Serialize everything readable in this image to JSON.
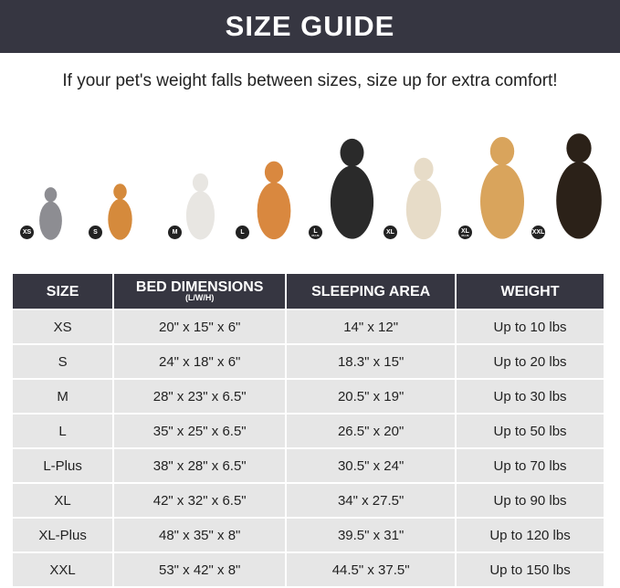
{
  "title": "SIZE GUIDE",
  "subtitle": "If your pet's weight falls between sizes, size up for extra comfort!",
  "pets": [
    {
      "badge": "XS",
      "badge_sub": "",
      "animal": "cat",
      "color": "#8d8d92"
    },
    {
      "badge": "S",
      "badge_sub": "",
      "animal": "pomeranian",
      "color": "#d58a3c"
    },
    {
      "badge": "M",
      "badge_sub": "",
      "animal": "french-bulldog",
      "color": "#e8e6e2"
    },
    {
      "badge": "L",
      "badge_sub": "",
      "animal": "shiba-inu",
      "color": "#d9883f"
    },
    {
      "badge": "L",
      "badge_sub": "PLUS",
      "animal": "border-collie",
      "color": "#2a2a2a"
    },
    {
      "badge": "XL",
      "badge_sub": "",
      "animal": "labrador",
      "color": "#e7dcc8"
    },
    {
      "badge": "XL",
      "badge_sub": "PLUS",
      "animal": "golden-retriever",
      "color": "#d9a45c"
    },
    {
      "badge": "XXL",
      "badge_sub": "",
      "animal": "doberman",
      "color": "#2b2118"
    }
  ],
  "table": {
    "headers": [
      {
        "label": "SIZE",
        "sub": ""
      },
      {
        "label": "BED DIMENSIONS",
        "sub": "(L/W/H)"
      },
      {
        "label": "SLEEPING AREA",
        "sub": ""
      },
      {
        "label": "WEIGHT",
        "sub": ""
      }
    ],
    "rows": [
      [
        "XS",
        "20\" x 15\" x 6\"",
        "14\" x 12\"",
        "Up to 10 lbs"
      ],
      [
        "S",
        "24\" x 18\" x 6\"",
        "18.3\" x 15\"",
        "Up to 20 lbs"
      ],
      [
        "M",
        "28\" x 23\" x 6.5\"",
        "20.5\" x 19\"",
        "Up to 30 lbs"
      ],
      [
        "L",
        "35\" x 25\" x 6.5\"",
        "26.5\" x 20\"",
        "Up to 50 lbs"
      ],
      [
        "L-Plus",
        "38\" x 28\" x 6.5\"",
        "30.5\" x 24\"",
        "Up to 70 lbs"
      ],
      [
        "XL",
        "42\" x 32\" x 6.5\"",
        "34\" x 27.5\"",
        "Up to 90 lbs"
      ],
      [
        "XL-Plus",
        "48\" x 35\" x 8\"",
        "39.5\" x 31\"",
        "Up to 120 lbs"
      ],
      [
        "XXL",
        "53\" x 42\" x 8\"",
        "44.5\" x 37.5\"",
        "Up to 150 lbs"
      ]
    ]
  }
}
